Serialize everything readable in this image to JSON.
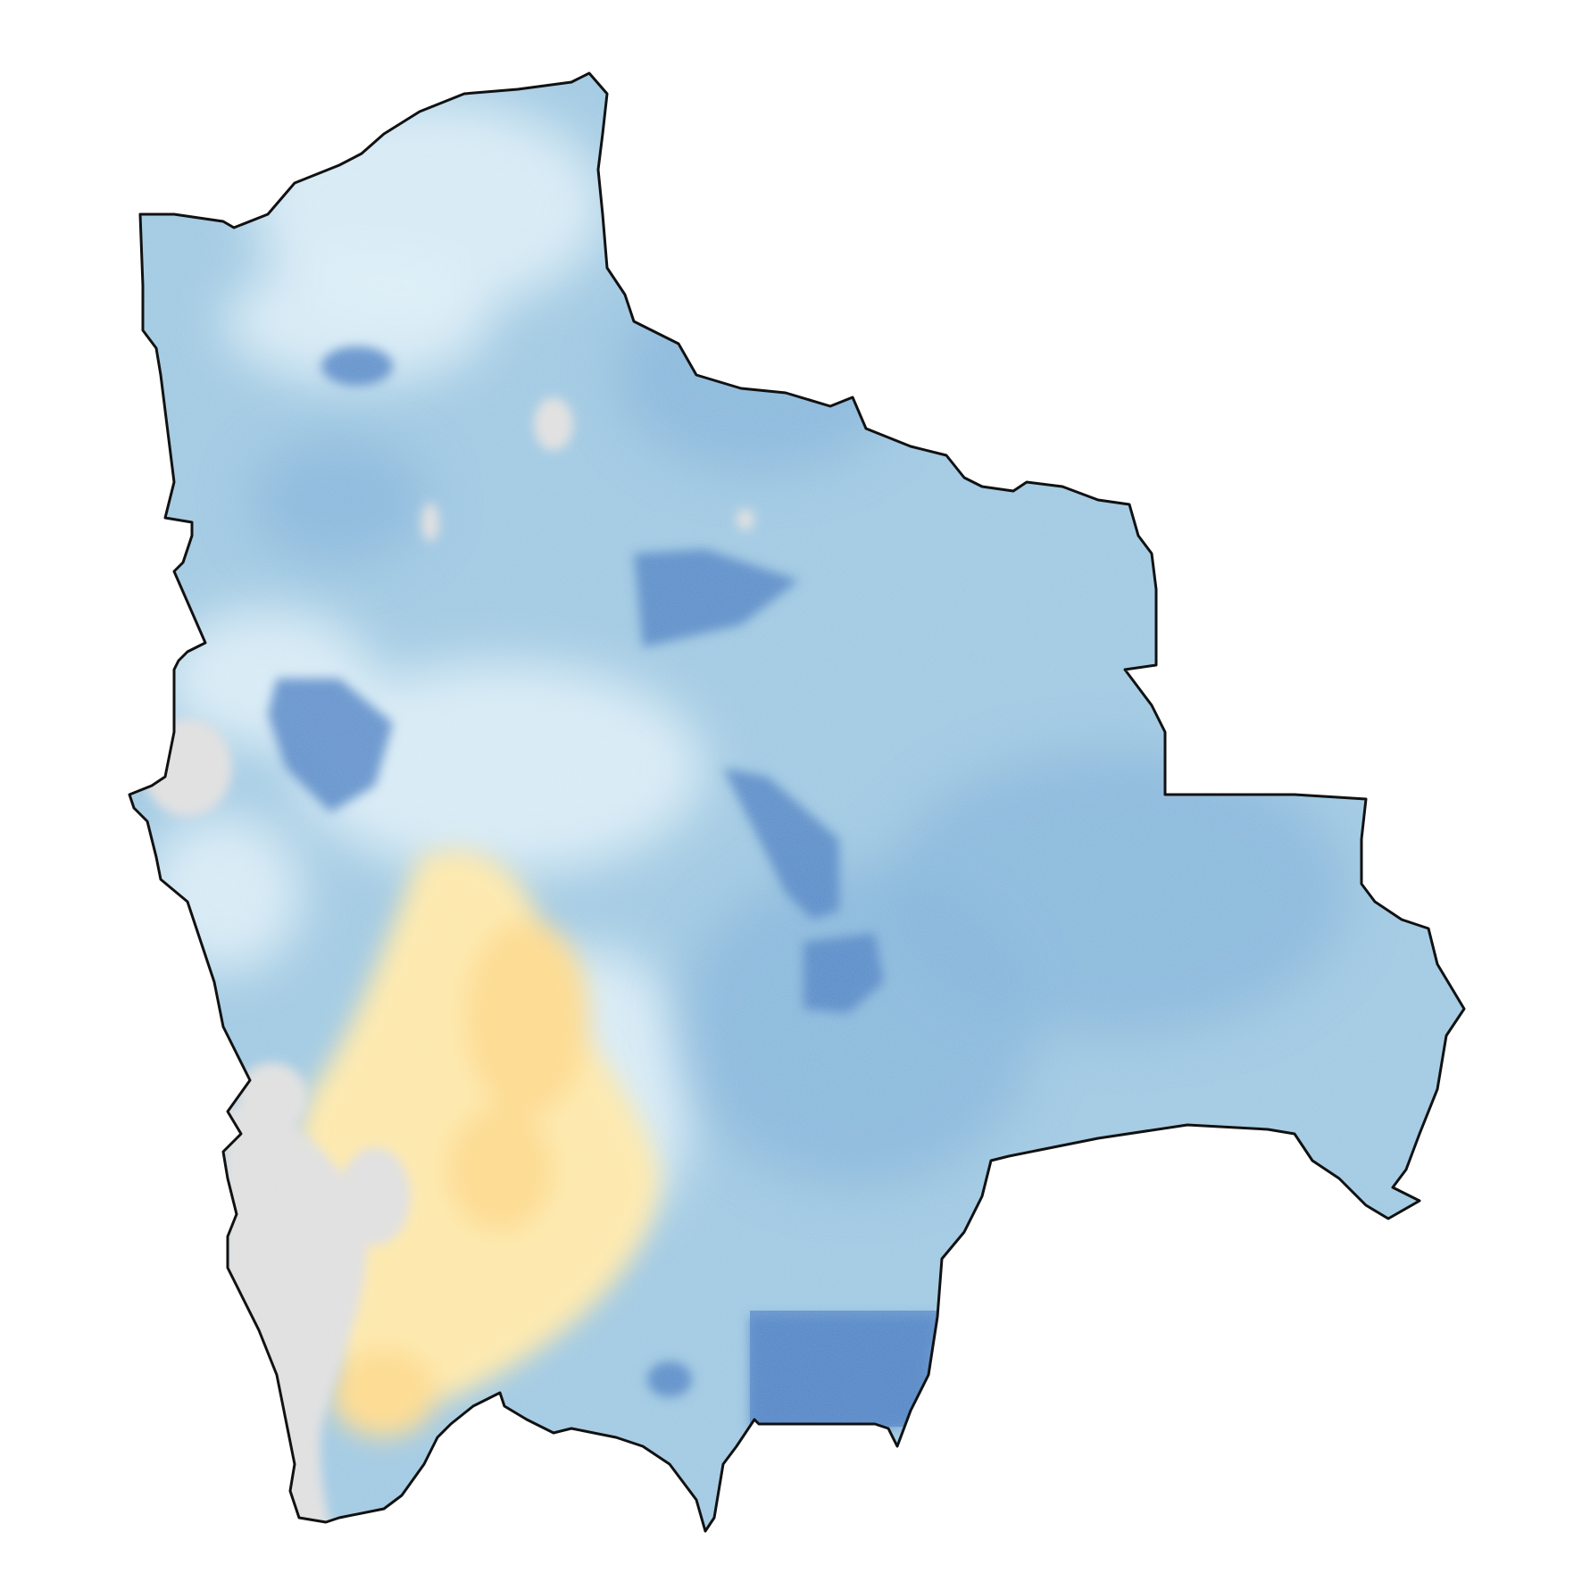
{
  "map": {
    "region": "Bolivia",
    "legend": null,
    "colors": {
      "background": "#ffffff",
      "border": "#111111",
      "base": "#9ec8e2",
      "light": "#dff0f8",
      "medium": "#7fb0d8",
      "dark": "#4f82c4",
      "warm": "#fde7a8",
      "warm_strong": "#fdd98a",
      "no_data": "#dedede"
    }
  }
}
